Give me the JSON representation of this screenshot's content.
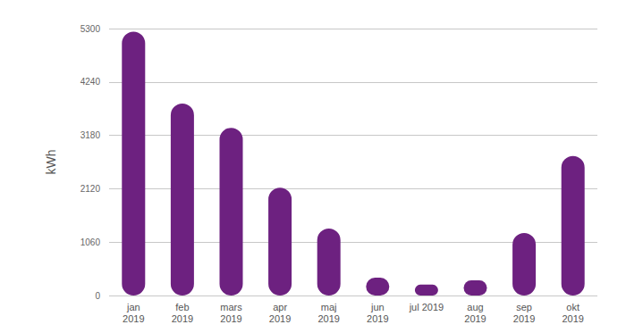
{
  "chart_data": {
    "type": "bar",
    "y_label": "kWh",
    "categories": [
      "jan\n2019",
      "feb\n2019",
      "mars\n2019",
      "apr\n2019",
      "maj\n2019",
      "jun\n2019",
      "jul 2019",
      "aug\n2019",
      "sep\n2019",
      "okt\n2019"
    ],
    "values": [
      5240,
      3810,
      3330,
      2140,
      1330,
      355,
      215,
      300,
      1240,
      2770
    ],
    "color": "#6d2180",
    "ylim": [
      0,
      5300
    ],
    "yticks": [
      0,
      1060,
      2120,
      3180,
      4240,
      5300
    ],
    "grid": true
  }
}
